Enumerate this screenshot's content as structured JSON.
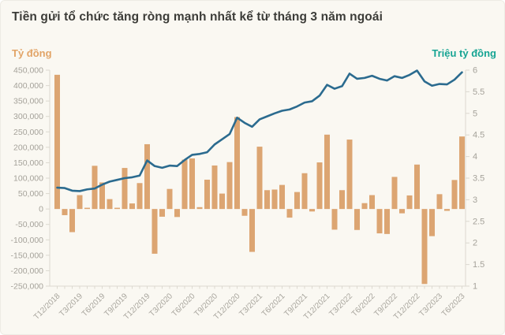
{
  "header": {
    "title": "Tiền gửi tổ chức tăng ròng mạnh nhất kể từ tháng 3 năm ngoái"
  },
  "colors": {
    "background": "#faf8f2",
    "bar": "#dca572",
    "line": "#2b6b8f",
    "title": "#3c3c38",
    "left_unit": "#e2a467",
    "right_unit": "#16a493",
    "axis_text": "#a5a29a",
    "axis_line": "#dcd9d0"
  },
  "chart_data": {
    "type": "combo-bar-line",
    "title": "Tiền gửi tổ chức tăng ròng mạnh nhất kể từ tháng 3 năm ngoái",
    "frequency": "monthly",
    "grid": "off",
    "x_tick_every": 3,
    "x_tick_labels": [
      "T12/2018",
      "T3/2019",
      "T6/2019",
      "T9/2019",
      "T12/2019",
      "T3/2020",
      "T6/2020",
      "T9/2020",
      "T12/2020",
      "T3/2021",
      "T6/2021",
      "T9/2021",
      "T12/2021",
      "T3/2022",
      "T6/2022",
      "T9/2022",
      "T12/2022",
      "T3/2023",
      "T6/2023"
    ],
    "left_axis": {
      "label": "Tỷ đồng",
      "min": -250000,
      "max": 450000,
      "tick_step": 50000,
      "tick_labels": [
        "450,000",
        "400,000",
        "350,000",
        "300,000",
        "250,000",
        "200,000",
        "150,000",
        "100,000",
        "50,000",
        "0",
        "-50,000",
        "-100,000",
        "-150,000",
        "-200,000",
        "-250,000"
      ]
    },
    "right_axis": {
      "label": "Triệu tỷ đồng",
      "min": 1,
      "max": 6,
      "tick_step": 0.5,
      "tick_labels": [
        "6",
        "5.5",
        "5",
        "4.5",
        "4",
        "3.5",
        "3",
        "2.5",
        "2",
        "1.5",
        "1"
      ]
    },
    "bar_series": {
      "name": "Tỷ đồng",
      "axis": "left",
      "color": "#dca572",
      "values": [
        435000,
        -20000,
        -75000,
        45000,
        4000,
        140000,
        86000,
        32000,
        4000,
        133000,
        18000,
        84000,
        210000,
        -145000,
        -25000,
        65000,
        -26000,
        160000,
        164000,
        6000,
        95000,
        141000,
        50000,
        152000,
        298000,
        -22000,
        -139000,
        202000,
        61000,
        63000,
        78000,
        -28000,
        55000,
        116000,
        -8000,
        151000,
        241000,
        -67000,
        61000,
        225000,
        -68000,
        19000,
        45000,
        -79000,
        -81000,
        104000,
        -14000,
        44000,
        144000,
        -243000,
        -88000,
        48000,
        -6000,
        94000,
        235000
      ]
    },
    "line_series": {
      "name": "Triệu tỷ đồng",
      "axis": "right",
      "color": "#2b6b8f",
      "values": [
        3.28,
        3.27,
        3.21,
        3.2,
        3.24,
        3.26,
        3.35,
        3.42,
        3.46,
        3.5,
        3.52,
        3.56,
        3.91,
        3.78,
        3.74,
        3.79,
        3.78,
        3.92,
        4.04,
        4.06,
        4.1,
        4.28,
        4.4,
        4.52,
        4.9,
        4.78,
        4.69,
        4.86,
        4.93,
        5.0,
        5.06,
        5.09,
        5.16,
        5.25,
        5.28,
        5.41,
        5.66,
        5.57,
        5.63,
        5.92,
        5.8,
        5.82,
        5.87,
        5.8,
        5.76,
        5.86,
        5.82,
        5.89,
        5.99,
        5.74,
        5.64,
        5.68,
        5.67,
        5.78,
        5.95
      ]
    }
  }
}
